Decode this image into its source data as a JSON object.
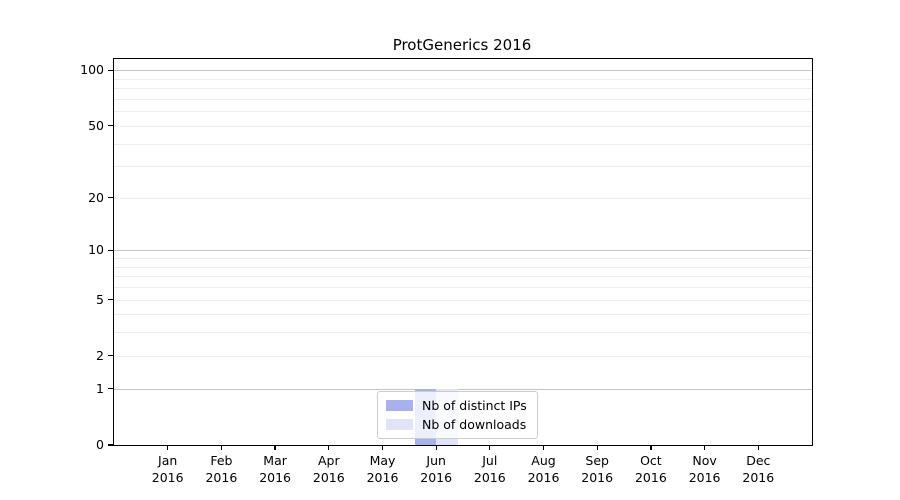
{
  "figure": {
    "title": "ProtGenerics 2016"
  },
  "chart_data": {
    "type": "bar",
    "title": "ProtGenerics 2016",
    "xlabel": "",
    "ylabel": "",
    "categories": [
      "Jan 2016",
      "Feb 2016",
      "Mar 2016",
      "Apr 2016",
      "May 2016",
      "Jun 2016",
      "Jul 2016",
      "Aug 2016",
      "Sep 2016",
      "Oct 2016",
      "Nov 2016",
      "Dec 2016"
    ],
    "series": [
      {
        "name": "Nb of distinct IPs",
        "color": "#a9b0ee",
        "values": [
          0,
          0,
          0,
          0,
          0,
          1,
          0,
          0,
          0,
          0,
          0,
          0
        ]
      },
      {
        "name": "Nb of downloads",
        "color": "#e0e3fa",
        "values": [
          0,
          0,
          0,
          0,
          0,
          1,
          0,
          0,
          0,
          0,
          0,
          0
        ]
      }
    ],
    "yscale": "log1p",
    "ylim": [
      0,
      115
    ],
    "yticks": [
      0,
      1,
      2,
      5,
      10,
      20,
      50,
      100
    ],
    "yticks_minor": [
      3,
      4,
      6,
      7,
      8,
      9,
      30,
      40,
      60,
      70,
      80,
      90
    ],
    "grid_major_at": [
      1,
      10,
      100
    ],
    "grid": {
      "major_color": "#c3c3c3",
      "minor_color": "#ededed",
      "grid_on": true
    },
    "legend": {
      "position": "lower-center",
      "frame": true
    }
  }
}
